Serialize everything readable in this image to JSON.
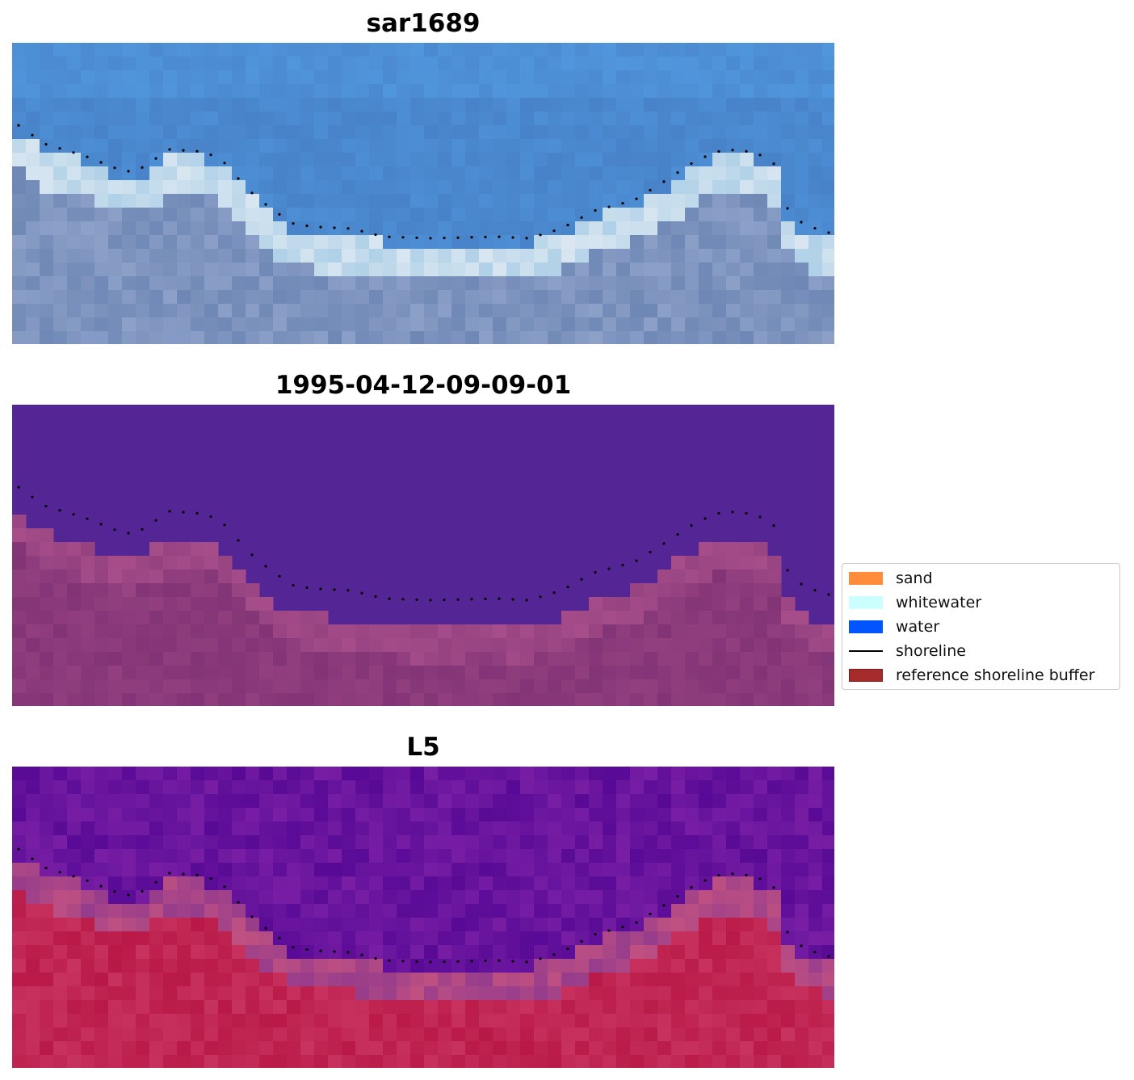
{
  "panels": [
    {
      "title": "sar1689",
      "kind": "rgb"
    },
    {
      "title": "1995-04-12-09-09-01",
      "kind": "classified"
    },
    {
      "title": "L5",
      "kind": "index"
    }
  ],
  "legend": {
    "items": [
      {
        "label": "sand",
        "color": "#FF8C3A",
        "kind": "patch"
      },
      {
        "label": "whitewater",
        "color": "#CCFFFF",
        "kind": "patch"
      },
      {
        "label": "water",
        "color": "#0055FF",
        "kind": "patch"
      },
      {
        "label": "shoreline",
        "color": "#000000",
        "kind": "line"
      },
      {
        "label": "reference shoreline buffer",
        "color": "#A52A2A",
        "kind": "patch"
      }
    ]
  },
  "colors": {
    "rgb_water": "#4A7FC6",
    "rgb_sand": "#7C8FC0",
    "classified_water": "#542595",
    "classified_sand": "#87387A",
    "index_low": "#640F9C",
    "index_high": "#C01F4E"
  }
}
